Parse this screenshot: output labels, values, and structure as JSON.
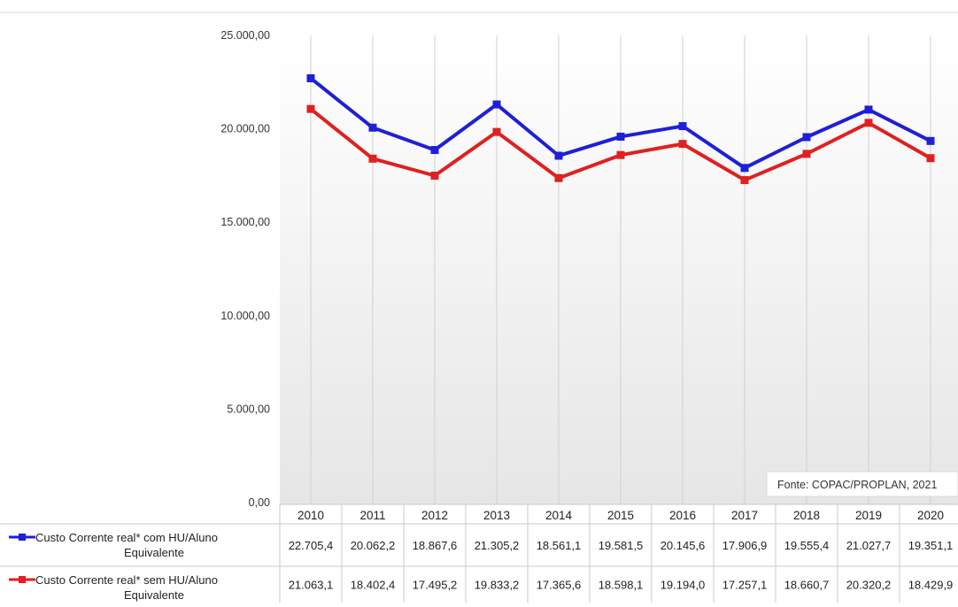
{
  "source_note": "Fonte: COPAC/PROPLAN, 2021",
  "chart_data": {
    "type": "line",
    "categories": [
      "2010",
      "2011",
      "2012",
      "2013",
      "2014",
      "2015",
      "2016",
      "2017",
      "2018",
      "2019",
      "2020"
    ],
    "ylim": [
      0,
      25000
    ],
    "yticks": [
      0,
      5000,
      10000,
      15000,
      20000,
      25000
    ],
    "ytick_labels": [
      "0,00",
      "5.000,00",
      "10.000,00",
      "15.000,00",
      "20.000,00",
      "25.000,00"
    ],
    "grid": "vertical",
    "legend": "data-table-bottom",
    "series": [
      {
        "name_line1": "Custo Corrente real* com HU/Aluno",
        "name_line2": "Equivalente",
        "color": "#1f1fd6",
        "values": [
          22705.4,
          20062.2,
          18867.6,
          21305.2,
          18561.1,
          19581.5,
          20145.6,
          17906.9,
          19555.4,
          21027.7,
          19351.1
        ],
        "value_labels": [
          "22.705,4",
          "20.062,2",
          "18.867,6",
          "21.305,2",
          "18.561,1",
          "19.581,5",
          "20.145,6",
          "17.906,9",
          "19.555,4",
          "21.027,7",
          "19.351,1"
        ]
      },
      {
        "name_line1": "Custo Corrente real* sem HU/Aluno",
        "name_line2": "Equivalente",
        "color": "#e02020",
        "values": [
          21063.1,
          18402.4,
          17495.2,
          19833.2,
          17365.6,
          18598.1,
          19194.0,
          17257.1,
          18660.7,
          20320.2,
          18429.9
        ],
        "value_labels": [
          "21.063,1",
          "18.402,4",
          "17.495,2",
          "19.833,2",
          "17.365,6",
          "18.598,1",
          "19.194,0",
          "17.257,1",
          "18.660,7",
          "20.320,2",
          "18.429,9"
        ]
      }
    ]
  }
}
